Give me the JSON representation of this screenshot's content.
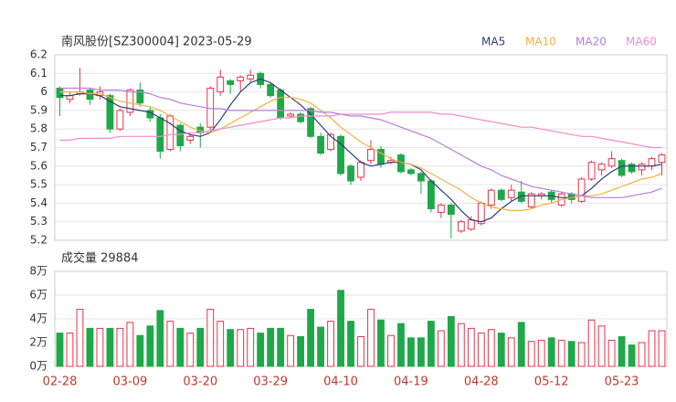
{
  "chart_data": {
    "type": "candlestick",
    "title": "南风股份[SZ300004] 2023-05-29",
    "categories": [
      "02-28",
      null,
      null,
      null,
      null,
      null,
      null,
      "03-09",
      null,
      null,
      null,
      null,
      null,
      null,
      "03-20",
      null,
      null,
      null,
      null,
      null,
      null,
      "03-29",
      null,
      null,
      null,
      null,
      null,
      null,
      "04-10",
      null,
      null,
      null,
      null,
      null,
      null,
      "04-19",
      null,
      null,
      null,
      null,
      null,
      null,
      "04-28",
      null,
      null,
      null,
      null,
      null,
      null,
      "05-12",
      null,
      null,
      null,
      null,
      null,
      null,
      "05-23",
      null,
      null,
      null,
      null
    ],
    "open": [
      6.02,
      5.96,
      5.99,
      6.01,
      5.98,
      5.98,
      5.8,
      5.89,
      6.01,
      5.9,
      5.86,
      5.69,
      5.82,
      5.74,
      5.81,
      5.81,
      6.0,
      6.06,
      6.06,
      6.07,
      6.1,
      6.04,
      6.01,
      5.87,
      5.88,
      5.91,
      5.76,
      5.69,
      5.76,
      5.6,
      5.54,
      5.63,
      5.69,
      5.62,
      5.66,
      5.58,
      5.56,
      5.52,
      5.35,
      5.39,
      5.25,
      5.26,
      5.29,
      5.39,
      5.47,
      5.43,
      5.46,
      5.38,
      5.44,
      5.46,
      5.39,
      5.45,
      5.41,
      5.53,
      5.58,
      5.6,
      5.63,
      5.61,
      5.58,
      5.6,
      5.62
    ],
    "high": [
      6.03,
      6.0,
      6.13,
      6.02,
      6.03,
      5.99,
      5.91,
      6.02,
      6.05,
      5.92,
      5.88,
      5.88,
      5.83,
      5.77,
      5.83,
      6.03,
      6.12,
      6.07,
      6.09,
      6.12,
      6.11,
      6.05,
      6.02,
      5.89,
      5.89,
      5.92,
      5.78,
      5.78,
      5.77,
      5.61,
      5.63,
      5.74,
      5.71,
      5.65,
      5.67,
      5.59,
      5.57,
      5.53,
      5.4,
      5.4,
      5.31,
      5.33,
      5.41,
      5.48,
      5.48,
      5.5,
      5.52,
      5.46,
      5.46,
      5.47,
      5.46,
      5.46,
      5.54,
      5.63,
      5.62,
      5.68,
      5.64,
      5.62,
      5.62,
      5.65,
      5.67
    ],
    "low": [
      5.87,
      5.94,
      5.98,
      5.93,
      5.96,
      5.78,
      5.79,
      5.87,
      5.92,
      5.84,
      5.64,
      5.68,
      5.68,
      5.72,
      5.7,
      5.79,
      5.98,
      5.99,
      6.0,
      6.05,
      6.02,
      5.97,
      5.85,
      5.86,
      5.83,
      5.75,
      5.66,
      5.68,
      5.55,
      5.5,
      5.52,
      5.61,
      5.59,
      5.61,
      5.56,
      5.55,
      5.45,
      5.35,
      5.32,
      5.21,
      5.24,
      5.25,
      5.28,
      5.37,
      5.41,
      5.41,
      5.4,
      5.37,
      5.42,
      5.4,
      5.38,
      5.4,
      5.4,
      5.52,
      5.55,
      5.59,
      5.54,
      5.56,
      5.55,
      5.58,
      5.55
    ],
    "close": [
      5.97,
      5.98,
      6.0,
      5.96,
      6.0,
      5.8,
      5.9,
      6.01,
      5.94,
      5.86,
      5.68,
      5.87,
      5.71,
      5.76,
      5.78,
      6.02,
      6.08,
      6.04,
      6.08,
      6.09,
      6.04,
      5.98,
      5.86,
      5.88,
      5.84,
      5.76,
      5.67,
      5.77,
      5.56,
      5.52,
      5.62,
      5.69,
      5.61,
      5.63,
      5.57,
      5.56,
      5.52,
      5.37,
      5.39,
      5.34,
      5.3,
      5.31,
      5.4,
      5.47,
      5.42,
      5.47,
      5.41,
      5.45,
      5.45,
      5.42,
      5.45,
      5.42,
      5.53,
      5.62,
      5.61,
      5.64,
      5.55,
      5.57,
      5.61,
      5.64,
      5.66
    ],
    "up_color": "#e8334a",
    "down_color": "#1ea84a",
    "series": [
      {
        "name": "MA5",
        "color": "#2f3b7a",
        "values": [
          5.98,
          5.98,
          5.99,
          5.99,
          5.98,
          5.95,
          5.92,
          5.91,
          5.9,
          5.89,
          5.86,
          5.83,
          5.79,
          5.77,
          5.76,
          5.78,
          5.85,
          5.93,
          6.0,
          6.05,
          6.07,
          6.05,
          6.01,
          5.97,
          5.93,
          5.88,
          5.82,
          5.76,
          5.72,
          5.67,
          5.62,
          5.6,
          5.61,
          5.62,
          5.62,
          5.61,
          5.58,
          5.52,
          5.47,
          5.42,
          5.36,
          5.31,
          5.3,
          5.32,
          5.37,
          5.41,
          5.44,
          5.44,
          5.44,
          5.44,
          5.43,
          5.43,
          5.44,
          5.48,
          5.53,
          5.57,
          5.6,
          5.6,
          5.6,
          5.6,
          5.61
        ]
      },
      {
        "name": "MA10",
        "color": "#f5b041",
        "values": [
          6.0,
          6.0,
          6.0,
          5.99,
          5.99,
          5.97,
          5.95,
          5.94,
          5.93,
          5.92,
          5.9,
          5.87,
          5.84,
          5.81,
          5.79,
          5.78,
          5.8,
          5.83,
          5.86,
          5.89,
          5.92,
          5.95,
          5.97,
          5.97,
          5.96,
          5.94,
          5.9,
          5.86,
          5.81,
          5.77,
          5.73,
          5.7,
          5.67,
          5.64,
          5.62,
          5.61,
          5.59,
          5.56,
          5.53,
          5.5,
          5.47,
          5.43,
          5.4,
          5.38,
          5.37,
          5.36,
          5.36,
          5.37,
          5.39,
          5.4,
          5.42,
          5.43,
          5.44,
          5.44,
          5.45,
          5.47,
          5.49,
          5.51,
          5.53,
          5.54,
          5.56
        ]
      },
      {
        "name": "MA20",
        "color": "#b47fdc",
        "values": [
          6.02,
          6.02,
          6.02,
          6.02,
          6.01,
          6.01,
          6.01,
          6.0,
          6.0,
          5.99,
          5.97,
          5.96,
          5.94,
          5.93,
          5.92,
          5.91,
          5.91,
          5.9,
          5.9,
          5.9,
          5.9,
          5.9,
          5.9,
          5.9,
          5.9,
          5.9,
          5.89,
          5.89,
          5.88,
          5.87,
          5.87,
          5.86,
          5.85,
          5.83,
          5.81,
          5.79,
          5.77,
          5.75,
          5.72,
          5.69,
          5.66,
          5.63,
          5.6,
          5.58,
          5.55,
          5.53,
          5.51,
          5.49,
          5.48,
          5.47,
          5.46,
          5.45,
          5.44,
          5.43,
          5.43,
          5.43,
          5.43,
          5.44,
          5.45,
          5.46,
          5.48
        ]
      },
      {
        "name": "MA60",
        "color": "#f08ccc",
        "values": [
          5.74,
          5.74,
          5.75,
          5.75,
          5.75,
          5.75,
          5.76,
          5.76,
          5.76,
          5.76,
          5.76,
          5.77,
          5.77,
          5.78,
          5.78,
          5.79,
          5.8,
          5.81,
          5.82,
          5.83,
          5.84,
          5.85,
          5.86,
          5.86,
          5.87,
          5.87,
          5.87,
          5.87,
          5.88,
          5.88,
          5.88,
          5.88,
          5.88,
          5.89,
          5.89,
          5.89,
          5.89,
          5.89,
          5.88,
          5.88,
          5.87,
          5.86,
          5.85,
          5.84,
          5.83,
          5.82,
          5.81,
          5.81,
          5.8,
          5.79,
          5.78,
          5.77,
          5.76,
          5.76,
          5.75,
          5.74,
          5.73,
          5.72,
          5.71,
          5.7,
          5.7
        ]
      }
    ],
    "ylim": [
      5.2,
      6.2
    ],
    "yticks": [
      5.2,
      5.3,
      5.4,
      5.5,
      5.6,
      5.7,
      5.8,
      5.9,
      6,
      6.1,
      6.2
    ],
    "volume_title": "成交量 29884",
    "volume": [
      2.8,
      2.8,
      4.8,
      3.2,
      3.2,
      3.2,
      3.2,
      3.7,
      2.6,
      3.4,
      4.7,
      3.8,
      3.2,
      2.8,
      3.2,
      4.8,
      3.8,
      3.1,
      3.1,
      3.2,
      2.8,
      3.2,
      3.2,
      2.6,
      2.5,
      4.8,
      3.3,
      3.8,
      6.4,
      3.8,
      2.5,
      4.8,
      3.9,
      2.6,
      3.6,
      2.4,
      2.4,
      3.8,
      3.0,
      4.2,
      3.6,
      3.2,
      2.8,
      3.1,
      2.8,
      2.4,
      3.7,
      2.1,
      2.2,
      2.4,
      2.2,
      2.1,
      2.0,
      3.9,
      3.4,
      2.2,
      2.5,
      1.8,
      2.0,
      3.0,
      3.0
    ],
    "vol_ylim": [
      0,
      8
    ],
    "vol_yticks": [
      {
        "value": 0,
        "label": "0万"
      },
      {
        "value": 2,
        "label": "2万"
      },
      {
        "value": 4,
        "label": "4万"
      },
      {
        "value": 6,
        "label": "6万"
      },
      {
        "value": 8,
        "label": "8万"
      }
    ],
    "grid": true
  }
}
